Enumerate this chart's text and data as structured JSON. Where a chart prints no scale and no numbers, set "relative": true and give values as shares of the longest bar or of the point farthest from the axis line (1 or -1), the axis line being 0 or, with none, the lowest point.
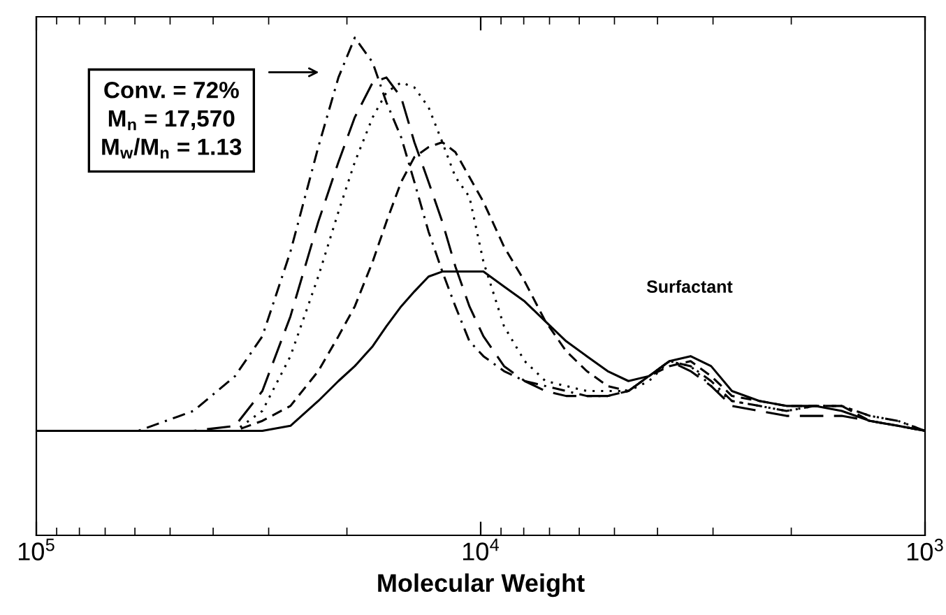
{
  "chart_data": {
    "type": "line",
    "xlabel": "Molecular Weight",
    "relative": true,
    "log": "x",
    "grid": false,
    "legend": false,
    "xlim": [
      100000,
      1000
    ],
    "xticks": [
      {
        "value": 100000,
        "label": "10$^{5}$"
      },
      {
        "value": 10000,
        "label": "10$^{4}$"
      },
      {
        "value": 1000,
        "label": "10$^{3}$"
      }
    ],
    "x": [
      100000,
      58900,
      44300,
      35700,
      31000,
      26800,
      23200,
      20900,
      19200,
      17500,
      16300,
      15100,
      14100,
      13100,
      12200,
      11400,
      10600,
      9860,
      8860,
      7960,
      7150,
      6420,
      5770,
      5180,
      4650,
      4180,
      3760,
      3370,
      3030,
      2720,
      2360,
      2050,
      1770,
      1540,
      1330,
      1150,
      1000
    ],
    "series": [
      {
        "color": "#000000",
        "line_style": "dashdot",
        "values": [
          0.21,
          0.21,
          0.25,
          0.32,
          0.4,
          0.57,
          0.78,
          0.92,
          1.0,
          0.95,
          0.87,
          0.8,
          0.71,
          0.61,
          0.53,
          0.46,
          0.39,
          0.36,
          0.33,
          0.31,
          0.3,
          0.29,
          0.28,
          0.28,
          0.29,
          0.32,
          0.35,
          0.34,
          0.31,
          0.27,
          0.26,
          0.25,
          0.26,
          0.26,
          0.24,
          0.23,
          0.21
        ]
      },
      {
        "color": "#000000",
        "line_style": "long_dashed",
        "values": [
          0.21,
          0.21,
          0.21,
          0.22,
          0.29,
          0.44,
          0.63,
          0.75,
          0.84,
          0.91,
          0.92,
          0.88,
          0.79,
          0.71,
          0.63,
          0.54,
          0.46,
          0.4,
          0.34,
          0.31,
          0.29,
          0.28,
          0.28,
          0.28,
          0.29,
          0.32,
          0.35,
          0.33,
          0.3,
          0.26,
          0.25,
          0.24,
          0.24,
          0.24,
          0.23,
          0.22,
          0.21
        ]
      },
      {
        "color": "#000000",
        "line_style": "dotted",
        "values": [
          0.21,
          0.21,
          0.21,
          0.21,
          0.25,
          0.36,
          0.52,
          0.65,
          0.75,
          0.84,
          0.89,
          0.91,
          0.9,
          0.86,
          0.79,
          0.72,
          0.68,
          0.55,
          0.42,
          0.35,
          0.31,
          0.3,
          0.29,
          0.29,
          0.29,
          0.31,
          0.35,
          0.34,
          0.3,
          0.27,
          0.26,
          0.25,
          0.26,
          0.26,
          0.24,
          0.23,
          0.21
        ]
      },
      {
        "color": "#000000",
        "line_style": "dashed",
        "values": [
          0.21,
          0.21,
          0.21,
          0.21,
          0.23,
          0.26,
          0.33,
          0.4,
          0.46,
          0.55,
          0.63,
          0.71,
          0.76,
          0.78,
          0.79,
          0.77,
          0.72,
          0.67,
          0.58,
          0.51,
          0.43,
          0.37,
          0.33,
          0.3,
          0.29,
          0.32,
          0.34,
          0.35,
          0.32,
          0.28,
          0.27,
          0.26,
          0.26,
          0.26,
          0.23,
          0.22,
          0.21
        ]
      },
      {
        "color": "#000000",
        "line_style": "solid",
        "values": [
          0.21,
          0.21,
          0.21,
          0.21,
          0.21,
          0.22,
          0.27,
          0.31,
          0.34,
          0.38,
          0.42,
          0.46,
          0.49,
          0.52,
          0.53,
          0.53,
          0.53,
          0.53,
          0.5,
          0.47,
          0.43,
          0.39,
          0.36,
          0.33,
          0.31,
          0.32,
          0.35,
          0.36,
          0.34,
          0.29,
          0.27,
          0.26,
          0.26,
          0.25,
          0.23,
          0.22,
          0.21
        ]
      }
    ],
    "annotations": [
      "Conv. = 72%\nM$_{n}$ = 17,570\nM$_{w}$/M$_{n}$ = 1.13",
      "Surfactant"
    ]
  }
}
